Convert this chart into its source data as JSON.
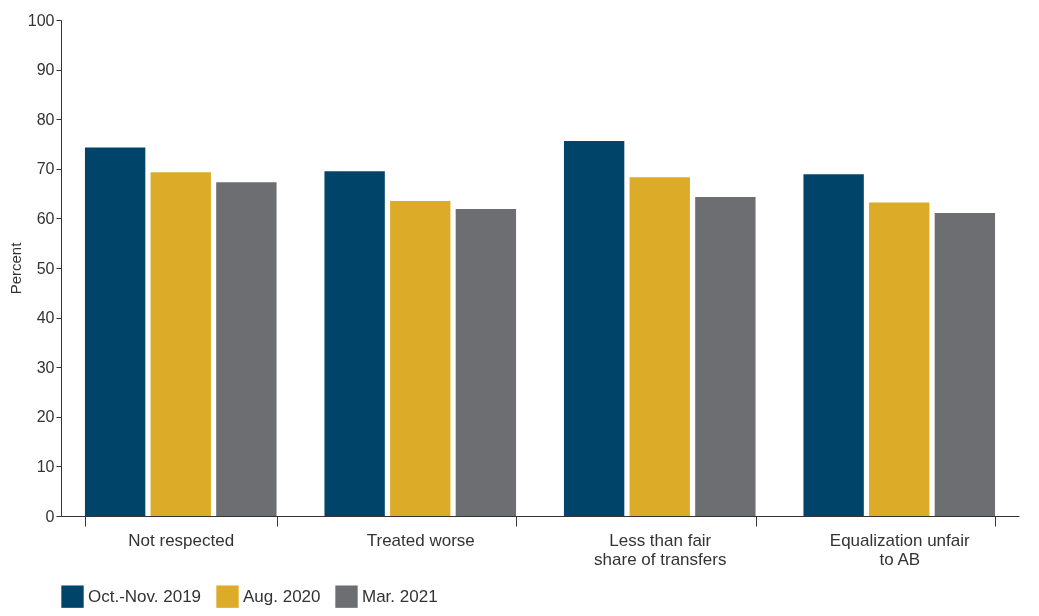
{
  "chart_data": {
    "type": "bar",
    "ylabel": "Percent",
    "categories": [
      "Not respected",
      "Treated worse",
      "Less than fair share of transfers",
      "Equalization unfair to AB"
    ],
    "series": [
      {
        "name": "Oct.-Nov. 2019",
        "color": "#00446a",
        "values": [
          74.3,
          69.5,
          75.6,
          68.9
        ]
      },
      {
        "name": "Aug. 2020",
        "color": "#dcab28",
        "values": [
          69.3,
          63.5,
          68.3,
          63.2
        ]
      },
      {
        "name": "Mar. 2021",
        "color": "#6d6e71",
        "values": [
          67.3,
          61.9,
          64.3,
          61.1
        ]
      }
    ],
    "ylim": [
      0,
      100
    ],
    "yticks": [
      0,
      10,
      20,
      30,
      40,
      50,
      60,
      70,
      80,
      90,
      100
    ],
    "grid": false,
    "legend": "bottom"
  }
}
